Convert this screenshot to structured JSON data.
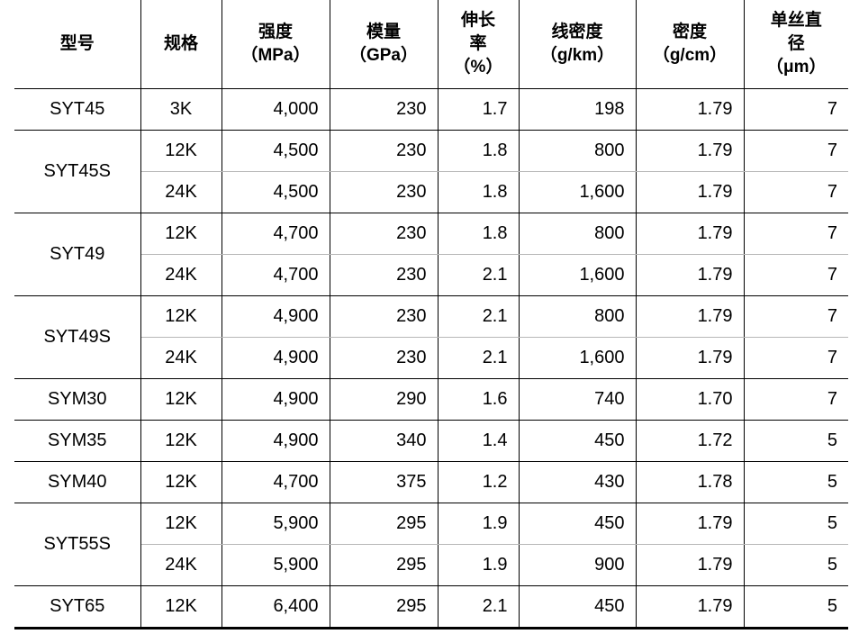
{
  "table": {
    "headers": [
      "型号",
      "规格",
      "强度\n（MPa）",
      "模量\n（GPa）",
      "伸长\n率\n（%）",
      "线密度\n（g/km）",
      "密度\n（g/cm）",
      "单丝直\n径\n（μm）"
    ],
    "groups": [
      {
        "model": "SYT45",
        "rows": [
          {
            "spec": "3K",
            "strength": "4,000",
            "modulus": "230",
            "elongation": "1.7",
            "linear_density": "198",
            "density": "1.79",
            "diameter": "7"
          }
        ]
      },
      {
        "model": "SYT45S",
        "rows": [
          {
            "spec": "12K",
            "strength": "4,500",
            "modulus": "230",
            "elongation": "1.8",
            "linear_density": "800",
            "density": "1.79",
            "diameter": "7"
          },
          {
            "spec": "24K",
            "strength": "4,500",
            "modulus": "230",
            "elongation": "1.8",
            "linear_density": "1,600",
            "density": "1.79",
            "diameter": "7"
          }
        ]
      },
      {
        "model": "SYT49",
        "rows": [
          {
            "spec": "12K",
            "strength": "4,700",
            "modulus": "230",
            "elongation": "1.8",
            "linear_density": "800",
            "density": "1.79",
            "diameter": "7"
          },
          {
            "spec": "24K",
            "strength": "4,700",
            "modulus": "230",
            "elongation": "2.1",
            "linear_density": "1,600",
            "density": "1.79",
            "diameter": "7"
          }
        ]
      },
      {
        "model": "SYT49S",
        "rows": [
          {
            "spec": "12K",
            "strength": "4,900",
            "modulus": "230",
            "elongation": "2.1",
            "linear_density": "800",
            "density": "1.79",
            "diameter": "7"
          },
          {
            "spec": "24K",
            "strength": "4,900",
            "modulus": "230",
            "elongation": "2.1",
            "linear_density": "1,600",
            "density": "1.79",
            "diameter": "7"
          }
        ]
      },
      {
        "model": "SYM30",
        "rows": [
          {
            "spec": "12K",
            "strength": "4,900",
            "modulus": "290",
            "elongation": "1.6",
            "linear_density": "740",
            "density": "1.70",
            "diameter": "7"
          }
        ]
      },
      {
        "model": "SYM35",
        "rows": [
          {
            "spec": "12K",
            "strength": "4,900",
            "modulus": "340",
            "elongation": "1.4",
            "linear_density": "450",
            "density": "1.72",
            "diameter": "5"
          }
        ]
      },
      {
        "model": "SYM40",
        "rows": [
          {
            "spec": "12K",
            "strength": "4,700",
            "modulus": "375",
            "elongation": "1.2",
            "linear_density": "430",
            "density": "1.78",
            "diameter": "5"
          }
        ]
      },
      {
        "model": "SYT55S",
        "rows": [
          {
            "spec": "12K",
            "strength": "5,900",
            "modulus": "295",
            "elongation": "1.9",
            "linear_density": "450",
            "density": "1.79",
            "diameter": "5"
          },
          {
            "spec": "24K",
            "strength": "5,900",
            "modulus": "295",
            "elongation": "1.9",
            "linear_density": "900",
            "density": "1.79",
            "diameter": "5"
          }
        ]
      },
      {
        "model": "SYT65",
        "rows": [
          {
            "spec": "12K",
            "strength": "6,400",
            "modulus": "295",
            "elongation": "2.1",
            "linear_density": "450",
            "density": "1.79",
            "diameter": "5"
          }
        ]
      }
    ]
  }
}
